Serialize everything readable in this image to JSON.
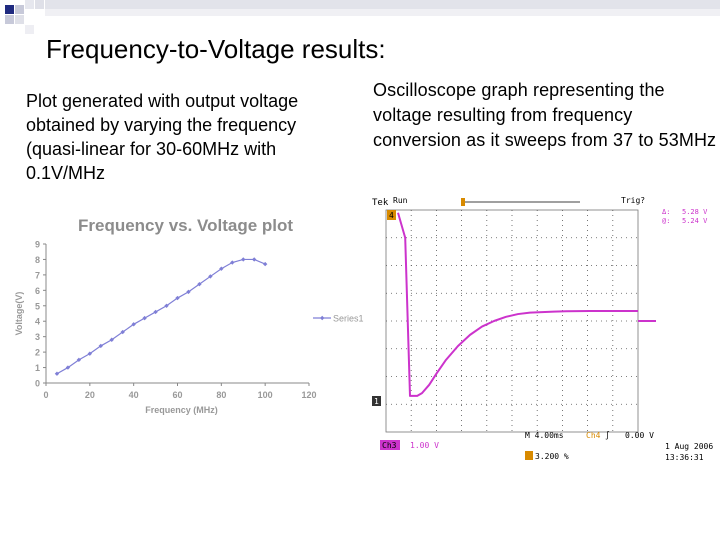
{
  "slide": {
    "title": "Frequency-to-Voltage results:",
    "left_text": "Plot generated with output voltage obtained by varying the frequency (quasi-linear for 30-60MHz with 0.1V/MHz",
    "right_text": "Oscilloscope graph representing the voltage resulting from frequency conversion as it sweeps from 37 to 53MHz"
  },
  "chart_data": [
    {
      "type": "line",
      "title": "Frequency vs. Voltage plot",
      "xlabel": "Frequency (MHz)",
      "ylabel": "Voltage(V)",
      "xlim": [
        0,
        120
      ],
      "ylim": [
        0,
        9
      ],
      "x_ticks": [
        "0",
        "20",
        "40",
        "60",
        "80",
        "100",
        "120"
      ],
      "y_ticks": [
        "0",
        "1",
        "2",
        "3",
        "4",
        "5",
        "6",
        "7",
        "8",
        "9"
      ],
      "grid": false,
      "legend": "right",
      "series": [
        {
          "name": "Series1",
          "color": "#7f7fd6",
          "x": [
            5,
            10,
            15,
            20,
            25,
            30,
            35,
            40,
            45,
            50,
            55,
            60,
            65,
            70,
            75,
            80,
            85,
            90,
            95,
            100
          ],
          "y": [
            0.6,
            1.0,
            1.5,
            1.9,
            2.4,
            2.8,
            3.3,
            3.8,
            4.2,
            4.6,
            5.0,
            5.5,
            5.9,
            6.4,
            6.9,
            7.4,
            7.8,
            8.0,
            8.0,
            7.7
          ]
        }
      ]
    },
    {
      "type": "line",
      "panel": "oscilloscope",
      "header": {
        "brand": "Tek",
        "mode": "Run",
        "trigger": "Trig?"
      },
      "cursor_readouts": [
        {
          "label": "Δ:",
          "value": "5.28 V"
        },
        {
          "label": "@:",
          "value": "5.24 V"
        }
      ],
      "channel_markers": [
        "4",
        "1"
      ],
      "footer": {
        "ch3_label": "Ch3",
        "ch3_scale": "1.00 V",
        "timebase": "M 4.00ms",
        "trigger_source": "Ch4",
        "trigger_slope": "∫",
        "trigger_level": "0.00 V",
        "trigger_position": "3.200 %",
        "date": "1 Aug 2006",
        "time": "13:36:31"
      },
      "trace_color": "#cc33cc",
      "trace": {
        "x": [
          0,
          0.3,
          0.5,
          0.8,
          1.0,
          1.3,
          1.6,
          2.0,
          2.5,
          3.0,
          3.5,
          4.0,
          4.5,
          5.0,
          5.5,
          6.0,
          6.5,
          7.0,
          8.0,
          9.0,
          10.0
        ],
        "y": [
          7.9,
          7.0,
          1.3,
          1.3,
          1.4,
          1.7,
          2.1,
          2.6,
          3.1,
          3.5,
          3.8,
          4.0,
          4.15,
          4.25,
          4.3,
          4.32,
          4.34,
          4.35,
          4.36,
          4.36,
          4.36
        ]
      }
    }
  ]
}
